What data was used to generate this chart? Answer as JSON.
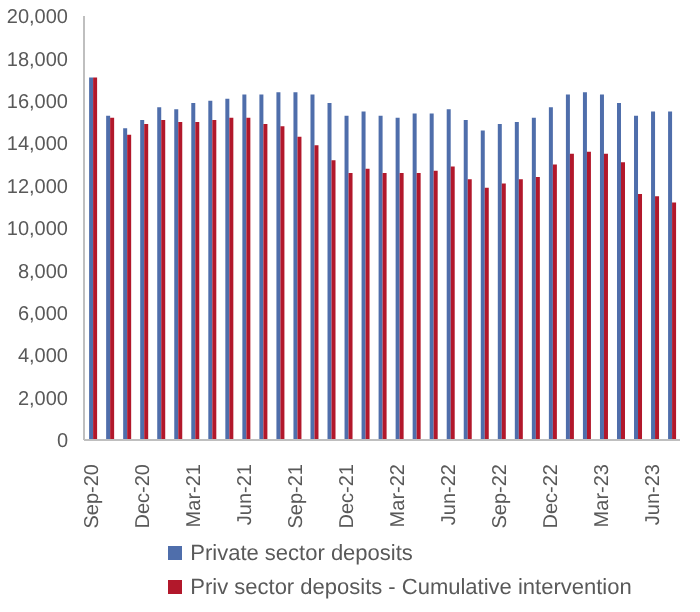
{
  "chart_data": {
    "type": "bar",
    "categories": [
      "Sep-20",
      null,
      null,
      "Dec-20",
      null,
      null,
      "Mar-21",
      null,
      null,
      "Jun-21",
      null,
      null,
      "Sep-21",
      null,
      null,
      "Dec-21",
      null,
      null,
      "Mar-22",
      null,
      null,
      "Jun-22",
      null,
      null,
      "Sep-22",
      null,
      null,
      "Dec-22",
      null,
      null,
      "Mar-23",
      null,
      null,
      "Jun-23",
      null
    ],
    "series": [
      {
        "name": "Private sector deposits",
        "color": "#4f6eab",
        "values": [
          17100,
          15300,
          14700,
          15100,
          15700,
          15600,
          15900,
          16000,
          16100,
          16300,
          16300,
          16400,
          16400,
          16300,
          15900,
          15300,
          15500,
          15300,
          15200,
          15400,
          15400,
          15600,
          15100,
          14600,
          14900,
          15000,
          15200,
          15700,
          16300,
          16400,
          16300,
          15900,
          15300,
          15500,
          15500
        ]
      },
      {
        "name": "Priv sector deposits - Cumulative intervention",
        "color": "#b2182b",
        "values": [
          17100,
          15200,
          14400,
          14900,
          15100,
          15000,
          15000,
          15100,
          15200,
          15200,
          14900,
          14800,
          14300,
          13900,
          13200,
          12600,
          12800,
          12600,
          12600,
          12600,
          12700,
          12900,
          12300,
          11900,
          12100,
          12300,
          12400,
          13000,
          13500,
          13600,
          13500,
          13100,
          11600,
          11500,
          11200
        ]
      }
    ],
    "ylim": [
      0,
      20000
    ],
    "yticks": [
      0,
      {
        "value": 2000,
        "label": "2,000"
      },
      {
        "value": 4000,
        "label": "4,000"
      },
      {
        "value": 6000,
        "label": "6,000"
      },
      {
        "value": 8000,
        "label": "8,000"
      },
      {
        "value": 10000,
        "label": "10,000"
      },
      {
        "value": 12000,
        "label": "12,000"
      },
      {
        "value": 14000,
        "label": "14,000"
      },
      {
        "value": 16000,
        "label": "16,000"
      },
      {
        "value": 18000,
        "label": "18,000"
      },
      {
        "value": 20000,
        "label": "20,000"
      }
    ],
    "legend": "bottom"
  }
}
